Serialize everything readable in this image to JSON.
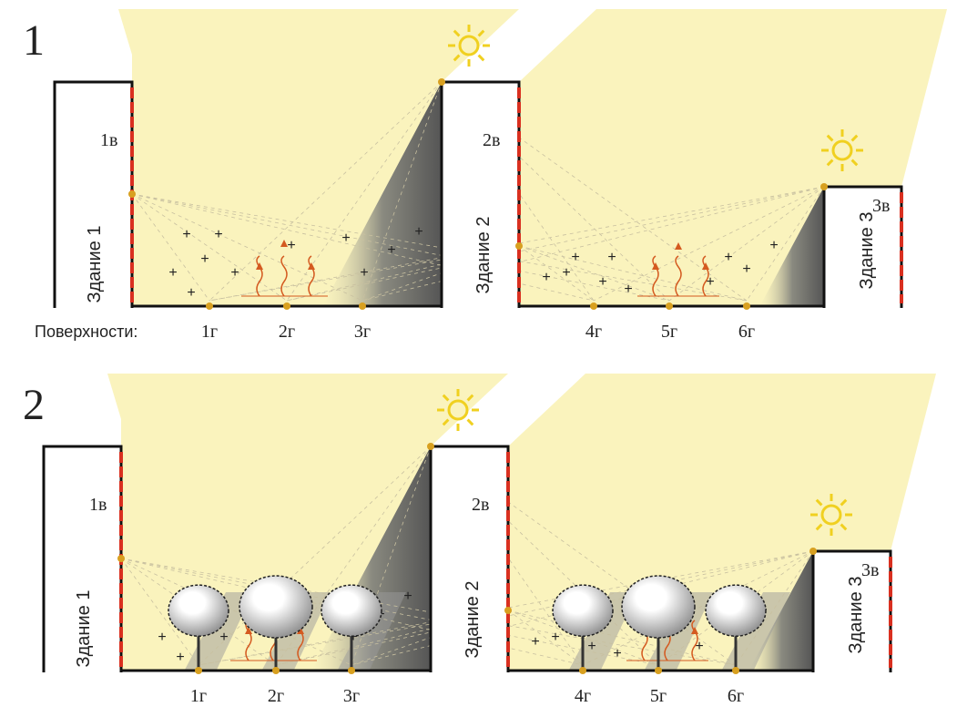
{
  "panels": [
    {
      "number": "1",
      "surfaces_label": "Поверхности:",
      "vertical": [
        "1в",
        "2в",
        "3в"
      ],
      "buildings": [
        "Здание 1",
        "Здание 2",
        "Здание 3"
      ],
      "horizontal": [
        "1г",
        "2г",
        "3г",
        "4г",
        "5г",
        "6г"
      ]
    },
    {
      "number": "2",
      "vertical": [
        "1в",
        "2в",
        "3в"
      ],
      "buildings": [
        "Здание 1",
        "Здание 2",
        "Здание 3"
      ],
      "horizontal": [
        "1г",
        "2г",
        "3г",
        "4г",
        "5г",
        "6г"
      ]
    }
  ]
}
